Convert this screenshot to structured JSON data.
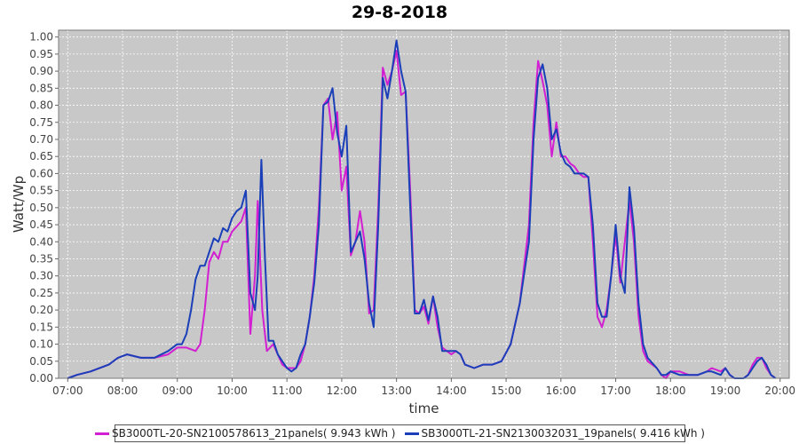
{
  "chart_data": {
    "type": "line",
    "title": "29-8-2018",
    "xlabel": "time",
    "ylabel": "Watt/Wp",
    "xlim": [
      "06:50",
      "20:10"
    ],
    "ylim": [
      0,
      1.02
    ],
    "x_ticks": [
      "07:00",
      "08:00",
      "09:00",
      "10:00",
      "11:00",
      "12:00",
      "13:00",
      "14:00",
      "15:00",
      "16:00",
      "17:00",
      "18:00",
      "19:00",
      "20:00"
    ],
    "y_ticks": [
      "0.00",
      "0.05",
      "0.10",
      "0.15",
      "0.20",
      "0.25",
      "0.30",
      "0.35",
      "0.40",
      "0.45",
      "0.50",
      "0.55",
      "0.60",
      "0.65",
      "0.70",
      "0.75",
      "0.80",
      "0.85",
      "0.90",
      "0.95",
      "1.00"
    ],
    "grid": true,
    "legend_position": "bottom",
    "series": [
      {
        "name": "SB3000TL-20-SN2100578613_21panels( 9.943 kWh )",
        "color": "#d21fd2",
        "points": [
          [
            "07:00",
            0.0
          ],
          [
            "07:10",
            0.01
          ],
          [
            "07:25",
            0.02
          ],
          [
            "07:45",
            0.04
          ],
          [
            "07:55",
            0.06
          ],
          [
            "08:05",
            0.07
          ],
          [
            "08:20",
            0.06
          ],
          [
            "08:35",
            0.06
          ],
          [
            "08:50",
            0.07
          ],
          [
            "09:00",
            0.09
          ],
          [
            "09:10",
            0.09
          ],
          [
            "09:20",
            0.08
          ],
          [
            "09:25",
            0.1
          ],
          [
            "09:30",
            0.2
          ],
          [
            "09:35",
            0.34
          ],
          [
            "09:40",
            0.37
          ],
          [
            "09:45",
            0.35
          ],
          [
            "09:50",
            0.4
          ],
          [
            "09:55",
            0.4
          ],
          [
            "10:00",
            0.43
          ],
          [
            "10:10",
            0.46
          ],
          [
            "10:15",
            0.5
          ],
          [
            "10:20",
            0.13
          ],
          [
            "10:25",
            0.3
          ],
          [
            "10:28",
            0.52
          ],
          [
            "10:33",
            0.2
          ],
          [
            "10:38",
            0.08
          ],
          [
            "10:45",
            0.1
          ],
          [
            "10:50",
            0.07
          ],
          [
            "10:55",
            0.04
          ],
          [
            "11:00",
            0.03
          ],
          [
            "11:05",
            0.03
          ],
          [
            "11:10",
            0.03
          ],
          [
            "11:15",
            0.05
          ],
          [
            "11:20",
            0.1
          ],
          [
            "11:25",
            0.18
          ],
          [
            "11:30",
            0.3
          ],
          [
            "11:35",
            0.5
          ],
          [
            "11:40",
            0.8
          ],
          [
            "11:45",
            0.82
          ],
          [
            "11:50",
            0.7
          ],
          [
            "11:55",
            0.78
          ],
          [
            "12:00",
            0.55
          ],
          [
            "12:05",
            0.62
          ],
          [
            "12:10",
            0.36
          ],
          [
            "12:15",
            0.4
          ],
          [
            "12:20",
            0.49
          ],
          [
            "12:25",
            0.4
          ],
          [
            "12:30",
            0.19
          ],
          [
            "12:35",
            0.2
          ],
          [
            "12:40",
            0.5
          ],
          [
            "12:45",
            0.91
          ],
          [
            "12:50",
            0.86
          ],
          [
            "12:55",
            0.9
          ],
          [
            "13:00",
            0.96
          ],
          [
            "13:05",
            0.83
          ],
          [
            "13:10",
            0.84
          ],
          [
            "13:15",
            0.55
          ],
          [
            "13:20",
            0.2
          ],
          [
            "13:25",
            0.19
          ],
          [
            "13:30",
            0.21
          ],
          [
            "13:35",
            0.16
          ],
          [
            "13:40",
            0.24
          ],
          [
            "13:45",
            0.15
          ],
          [
            "13:50",
            0.09
          ],
          [
            "14:00",
            0.07
          ],
          [
            "14:05",
            0.08
          ],
          [
            "14:10",
            0.07
          ],
          [
            "14:15",
            0.04
          ],
          [
            "14:25",
            0.03
          ],
          [
            "14:35",
            0.04
          ],
          [
            "14:45",
            0.04
          ],
          [
            "14:55",
            0.05
          ],
          [
            "15:05",
            0.1
          ],
          [
            "15:15",
            0.22
          ],
          [
            "15:25",
            0.45
          ],
          [
            "15:30",
            0.75
          ],
          [
            "15:35",
            0.93
          ],
          [
            "15:40",
            0.87
          ],
          [
            "15:45",
            0.8
          ],
          [
            "15:50",
            0.65
          ],
          [
            "15:55",
            0.75
          ],
          [
            "16:00",
            0.65
          ],
          [
            "16:05",
            0.65
          ],
          [
            "16:10",
            0.63
          ],
          [
            "16:15",
            0.62
          ],
          [
            "16:20",
            0.6
          ],
          [
            "16:25",
            0.59
          ],
          [
            "16:30",
            0.59
          ],
          [
            "16:35",
            0.4
          ],
          [
            "16:40",
            0.18
          ],
          [
            "16:45",
            0.15
          ],
          [
            "16:50",
            0.2
          ],
          [
            "16:55",
            0.3
          ],
          [
            "17:00",
            0.42
          ],
          [
            "17:05",
            0.28
          ],
          [
            "17:10",
            0.4
          ],
          [
            "17:15",
            0.52
          ],
          [
            "17:20",
            0.4
          ],
          [
            "17:25",
            0.18
          ],
          [
            "17:30",
            0.08
          ],
          [
            "17:35",
            0.05
          ],
          [
            "17:45",
            0.03
          ],
          [
            "17:50",
            0.01
          ],
          [
            "17:55",
            0.0
          ],
          [
            "18:00",
            0.02
          ],
          [
            "18:10",
            0.02
          ],
          [
            "18:20",
            0.01
          ],
          [
            "18:30",
            0.01
          ],
          [
            "18:40",
            0.02
          ],
          [
            "18:45",
            0.03
          ],
          [
            "18:55",
            0.02
          ],
          [
            "19:00",
            0.03
          ],
          [
            "19:05",
            0.01
          ],
          [
            "19:10",
            0.0
          ],
          [
            "19:20",
            0.0
          ],
          [
            "19:25",
            0.01
          ],
          [
            "19:30",
            0.04
          ],
          [
            "19:35",
            0.06
          ],
          [
            "19:40",
            0.06
          ],
          [
            "19:45",
            0.03
          ],
          [
            "19:50",
            0.01
          ],
          [
            "19:55",
            0.0
          ]
        ]
      },
      {
        "name": "SB3000TL-21-SN2130032031_19panels( 9.416 kWh )",
        "color": "#1a3fb8",
        "points": [
          [
            "07:00",
            0.0
          ],
          [
            "07:10",
            0.01
          ],
          [
            "07:25",
            0.02
          ],
          [
            "07:45",
            0.04
          ],
          [
            "07:55",
            0.06
          ],
          [
            "08:05",
            0.07
          ],
          [
            "08:20",
            0.06
          ],
          [
            "08:35",
            0.06
          ],
          [
            "08:50",
            0.08
          ],
          [
            "09:00",
            0.1
          ],
          [
            "09:05",
            0.1
          ],
          [
            "09:10",
            0.13
          ],
          [
            "09:15",
            0.2
          ],
          [
            "09:20",
            0.29
          ],
          [
            "09:25",
            0.33
          ],
          [
            "09:30",
            0.33
          ],
          [
            "09:35",
            0.37
          ],
          [
            "09:40",
            0.41
          ],
          [
            "09:45",
            0.4
          ],
          [
            "09:50",
            0.44
          ],
          [
            "09:55",
            0.43
          ],
          [
            "10:00",
            0.47
          ],
          [
            "10:05",
            0.49
          ],
          [
            "10:10",
            0.5
          ],
          [
            "10:15",
            0.55
          ],
          [
            "10:20",
            0.25
          ],
          [
            "10:25",
            0.2
          ],
          [
            "10:28",
            0.3
          ],
          [
            "10:32",
            0.64
          ],
          [
            "10:36",
            0.35
          ],
          [
            "10:40",
            0.11
          ],
          [
            "10:45",
            0.11
          ],
          [
            "10:50",
            0.07
          ],
          [
            "10:55",
            0.05
          ],
          [
            "11:00",
            0.03
          ],
          [
            "11:05",
            0.02
          ],
          [
            "11:10",
            0.03
          ],
          [
            "11:15",
            0.07
          ],
          [
            "11:20",
            0.1
          ],
          [
            "11:25",
            0.18
          ],
          [
            "11:30",
            0.28
          ],
          [
            "11:35",
            0.45
          ],
          [
            "11:40",
            0.8
          ],
          [
            "11:45",
            0.81
          ],
          [
            "11:50",
            0.85
          ],
          [
            "11:55",
            0.72
          ],
          [
            "12:00",
            0.65
          ],
          [
            "12:05",
            0.74
          ],
          [
            "12:10",
            0.37
          ],
          [
            "12:15",
            0.4
          ],
          [
            "12:20",
            0.43
          ],
          [
            "12:25",
            0.35
          ],
          [
            "12:30",
            0.22
          ],
          [
            "12:35",
            0.15
          ],
          [
            "12:40",
            0.45
          ],
          [
            "12:45",
            0.88
          ],
          [
            "12:50",
            0.82
          ],
          [
            "12:55",
            0.9
          ],
          [
            "13:00",
            0.99
          ],
          [
            "13:05",
            0.9
          ],
          [
            "13:10",
            0.84
          ],
          [
            "13:15",
            0.5
          ],
          [
            "13:20",
            0.19
          ],
          [
            "13:25",
            0.19
          ],
          [
            "13:30",
            0.23
          ],
          [
            "13:35",
            0.17
          ],
          [
            "13:40",
            0.24
          ],
          [
            "13:45",
            0.18
          ],
          [
            "13:50",
            0.08
          ],
          [
            "14:00",
            0.08
          ],
          [
            "14:05",
            0.08
          ],
          [
            "14:10",
            0.07
          ],
          [
            "14:15",
            0.04
          ],
          [
            "14:25",
            0.03
          ],
          [
            "14:35",
            0.04
          ],
          [
            "14:45",
            0.04
          ],
          [
            "14:55",
            0.05
          ],
          [
            "15:05",
            0.1
          ],
          [
            "15:15",
            0.22
          ],
          [
            "15:25",
            0.4
          ],
          [
            "15:30",
            0.7
          ],
          [
            "15:35",
            0.88
          ],
          [
            "15:40",
            0.92
          ],
          [
            "15:45",
            0.85
          ],
          [
            "15:50",
            0.7
          ],
          [
            "15:55",
            0.73
          ],
          [
            "16:00",
            0.66
          ],
          [
            "16:05",
            0.63
          ],
          [
            "16:10",
            0.62
          ],
          [
            "16:15",
            0.6
          ],
          [
            "16:20",
            0.6
          ],
          [
            "16:25",
            0.6
          ],
          [
            "16:30",
            0.59
          ],
          [
            "16:35",
            0.45
          ],
          [
            "16:40",
            0.22
          ],
          [
            "16:45",
            0.18
          ],
          [
            "16:50",
            0.18
          ],
          [
            "16:55",
            0.3
          ],
          [
            "17:00",
            0.45
          ],
          [
            "17:05",
            0.3
          ],
          [
            "17:10",
            0.25
          ],
          [
            "17:15",
            0.56
          ],
          [
            "17:20",
            0.44
          ],
          [
            "17:25",
            0.22
          ],
          [
            "17:30",
            0.1
          ],
          [
            "17:35",
            0.06
          ],
          [
            "17:45",
            0.03
          ],
          [
            "17:50",
            0.01
          ],
          [
            "17:55",
            0.01
          ],
          [
            "18:00",
            0.02
          ],
          [
            "18:10",
            0.01
          ],
          [
            "18:20",
            0.01
          ],
          [
            "18:30",
            0.01
          ],
          [
            "18:40",
            0.02
          ],
          [
            "18:45",
            0.02
          ],
          [
            "18:55",
            0.01
          ],
          [
            "19:00",
            0.03
          ],
          [
            "19:05",
            0.01
          ],
          [
            "19:10",
            0.0
          ],
          [
            "19:20",
            0.0
          ],
          [
            "19:25",
            0.01
          ],
          [
            "19:30",
            0.03
          ],
          [
            "19:35",
            0.05
          ],
          [
            "19:40",
            0.06
          ],
          [
            "19:45",
            0.04
          ],
          [
            "19:50",
            0.01
          ],
          [
            "19:55",
            0.0
          ]
        ]
      }
    ]
  }
}
